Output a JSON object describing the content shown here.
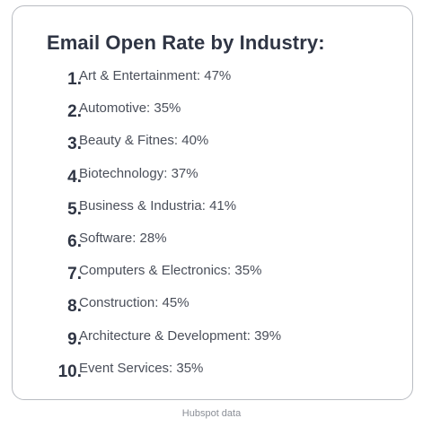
{
  "card": {
    "title": "Email Open Rate by Industry:",
    "items": [
      {
        "number": "1.",
        "label": "Art & Entertainment: 47%"
      },
      {
        "number": "2.",
        "label": "Automotive: 35%"
      },
      {
        "number": "3.",
        "label": "Beauty & Fitnes: 40%"
      },
      {
        "number": "4.",
        "label": "Biotechnology: 37%"
      },
      {
        "number": "5.",
        "label": "Business & Industria: 41%"
      },
      {
        "number": "6.",
        "label": "Software: 28%"
      },
      {
        "number": "7.",
        "label": "Computers & Electronics: 35%"
      },
      {
        "number": "8.",
        "label": "Construction: 45%"
      },
      {
        "number": "9.",
        "label": "Architecture & Development: 39%"
      },
      {
        "number": "10.",
        "label": "Event Services: 35%"
      }
    ]
  },
  "footer": {
    "source": "Hubspot data"
  }
}
